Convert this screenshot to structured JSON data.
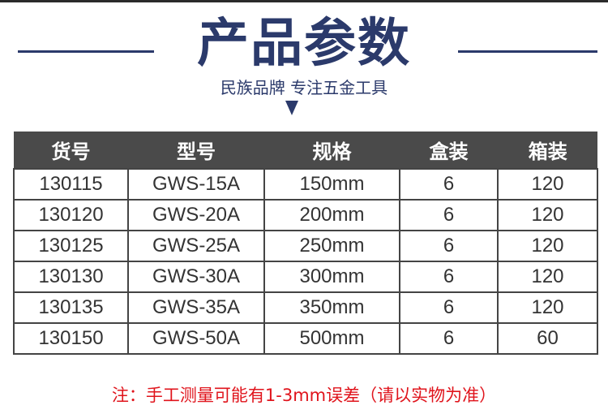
{
  "title": "产品参数",
  "subtitle": "民族品牌 专注五金工具",
  "colors": {
    "title": "#2b3a6b",
    "header_bg": "#4a4a4a",
    "note": "#e0141c"
  },
  "icons": {
    "arrow": "chevron-down-icon"
  },
  "table": {
    "headers": [
      "货号",
      "型号",
      "规格",
      "盒装",
      "箱装"
    ],
    "rows": [
      [
        "130115",
        "GWS-15A",
        "150mm",
        "6",
        "120"
      ],
      [
        "130120",
        "GWS-20A",
        "200mm",
        "6",
        "120"
      ],
      [
        "130125",
        "GWS-25A",
        "250mm",
        "6",
        "120"
      ],
      [
        "130130",
        "GWS-30A",
        "300mm",
        "6",
        "120"
      ],
      [
        "130135",
        "GWS-35A",
        "350mm",
        "6",
        "120"
      ],
      [
        "130150",
        "GWS-50A",
        "500mm",
        "6",
        "60"
      ]
    ]
  },
  "note": "注：手工测量可能有1-3mm误差（请以实物为准）"
}
